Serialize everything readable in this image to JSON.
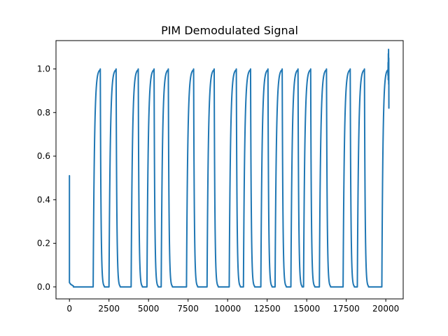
{
  "chart_data": {
    "type": "line",
    "title": "PIM Demodulated Signal",
    "xlabel": "",
    "ylabel": "",
    "xlim": [
      -850,
      21100
    ],
    "ylim": [
      -0.055,
      1.13
    ],
    "xticks": [
      0,
      2500,
      5000,
      7500,
      10000,
      12500,
      15000,
      17500,
      20000
    ],
    "yticks": [
      0.0,
      0.2,
      0.4,
      0.6,
      0.8,
      1.0
    ],
    "xtick_labels": [
      "0",
      "2500",
      "5000",
      "7500",
      "10000",
      "12500",
      "15000",
      "17500",
      "20000"
    ],
    "ytick_labels": [
      "0.0",
      "0.2",
      "0.4",
      "0.6",
      "0.8",
      "1.0"
    ],
    "grid": false,
    "legend": "none",
    "series": [
      {
        "color": "#1f77b4",
        "initial_spike": {
          "x": 0,
          "peak": 0.51,
          "baseline": 0.0
        },
        "pulses": [
          {
            "start": 1500,
            "end": 1950
          },
          {
            "start": 2500,
            "end": 2950
          },
          {
            "start": 3900,
            "end": 4350
          },
          {
            "start": 4900,
            "end": 5350
          },
          {
            "start": 5800,
            "end": 6250
          },
          {
            "start": 7400,
            "end": 7850
          },
          {
            "start": 8700,
            "end": 9150
          },
          {
            "start": 10100,
            "end": 10550
          },
          {
            "start": 11000,
            "end": 11450
          },
          {
            "start": 12100,
            "end": 12550
          },
          {
            "start": 13000,
            "end": 13450
          },
          {
            "start": 14000,
            "end": 14450
          },
          {
            "start": 14800,
            "end": 15250
          },
          {
            "start": 15800,
            "end": 16250
          },
          {
            "start": 17300,
            "end": 17750
          },
          {
            "start": 18200,
            "end": 18650
          }
        ],
        "final_rise": {
          "start": 19750,
          "end": 20200,
          "peak": 1.09,
          "last": 0.82
        }
      }
    ]
  }
}
